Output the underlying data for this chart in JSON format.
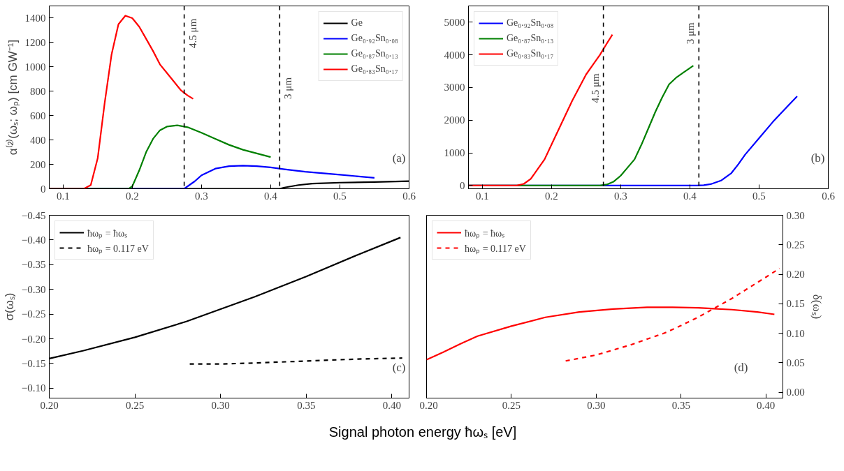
{
  "chart_data": [
    {
      "type": "line",
      "ylabel": "α⁽²⁾(ωₛ; ωₚ) [cm GW⁻¹]",
      "xlim": [
        0.08,
        0.6
      ],
      "xticks": [
        0.1,
        0.2,
        0.3,
        0.4,
        0.5,
        0.6
      ],
      "ylim": [
        0,
        1500
      ],
      "yticks": [
        0,
        200,
        400,
        600,
        800,
        1000,
        1200,
        1400
      ],
      "legend": "top right",
      "grid": false,
      "annotations": [
        "(a)"
      ],
      "ref_lines": [
        {
          "axis": "x",
          "value": 0.275,
          "label": "4.5 μm",
          "color": "#000000",
          "line_style": "dashed"
        },
        {
          "axis": "x",
          "value": 0.413,
          "label": "3 μm",
          "color": "#000000",
          "line_style": "dashed"
        }
      ],
      "series": [
        {
          "name": "Ge",
          "color": "#000000",
          "x": [
            0.08,
            0.413,
            0.42,
            0.44,
            0.46,
            0.5,
            0.55,
            0.6
          ],
          "values": [
            0,
            0,
            10,
            30,
            42,
            50,
            55,
            62
          ]
        },
        {
          "name": "Ge₀.₉₂Sn₀.₀₈",
          "color": "#0000ff",
          "x": [
            0.08,
            0.275,
            0.29,
            0.3,
            0.32,
            0.34,
            0.36,
            0.38,
            0.4,
            0.42,
            0.45,
            0.5,
            0.55
          ],
          "values": [
            0,
            0,
            60,
            110,
            165,
            185,
            190,
            185,
            175,
            160,
            140,
            115,
            90
          ]
        },
        {
          "name": "Ge₀.₈₇Sn₀.₁₃",
          "color": "#008000",
          "x": [
            0.08,
            0.195,
            0.2,
            0.21,
            0.22,
            0.23,
            0.24,
            0.25,
            0.265,
            0.28,
            0.3,
            0.32,
            0.34,
            0.36,
            0.38,
            0.4
          ],
          "values": [
            0,
            0,
            20,
            150,
            300,
            410,
            480,
            510,
            520,
            505,
            460,
            410,
            360,
            320,
            290,
            260
          ]
        },
        {
          "name": "Ge₀.₈₃Sn₀.₁₇",
          "color": "#ff0000",
          "x": [
            0.08,
            0.13,
            0.14,
            0.15,
            0.16,
            0.17,
            0.18,
            0.19,
            0.2,
            0.21,
            0.22,
            0.23,
            0.24,
            0.25,
            0.26,
            0.27,
            0.28,
            0.288
          ],
          "values": [
            0,
            0,
            30,
            250,
            700,
            1100,
            1350,
            1420,
            1400,
            1330,
            1230,
            1130,
            1020,
            950,
            880,
            810,
            765,
            738
          ]
        }
      ]
    },
    {
      "type": "line",
      "xlim": [
        0.08,
        0.6
      ],
      "xticks": [
        0.1,
        0.2,
        0.3,
        0.4,
        0.5,
        0.6
      ],
      "ylim": [
        -100,
        5500
      ],
      "yticks": [
        0,
        1000,
        2000,
        3000,
        4000,
        5000
      ],
      "legend": "top left",
      "grid": false,
      "annotations": [
        "(b)"
      ],
      "ref_lines": [
        {
          "axis": "x",
          "value": 0.275,
          "label": "4.5 μm",
          "color": "#000000",
          "line_style": "dashed"
        },
        {
          "axis": "x",
          "value": 0.413,
          "label": "3 μm",
          "color": "#000000",
          "line_style": "dashed"
        }
      ],
      "series": [
        {
          "name": "Ge₀.₉₂Sn₀.₀₈",
          "color": "#0000ff",
          "x": [
            0.08,
            0.41,
            0.42,
            0.43,
            0.445,
            0.46,
            0.47,
            0.48,
            0.5,
            0.52,
            0.54,
            0.555
          ],
          "values": [
            0,
            0,
            10,
            40,
            150,
            380,
            650,
            950,
            1450,
            1950,
            2400,
            2730
          ]
        },
        {
          "name": "Ge₀.₈₇Sn₀.₁₃",
          "color": "#008000",
          "x": [
            0.08,
            0.27,
            0.28,
            0.29,
            0.3,
            0.31,
            0.32,
            0.33,
            0.34,
            0.35,
            0.36,
            0.37,
            0.38,
            0.39,
            0.405
          ],
          "values": [
            0,
            0,
            30,
            120,
            300,
            550,
            800,
            1250,
            1750,
            2250,
            2700,
            3100,
            3300,
            3450,
            3670
          ]
        },
        {
          "name": "Ge₀.₈₃Sn₀.₁₇",
          "color": "#ff0000",
          "x": [
            0.08,
            0.15,
            0.16,
            0.17,
            0.18,
            0.19,
            0.2,
            0.21,
            0.22,
            0.23,
            0.24,
            0.25,
            0.26,
            0.27,
            0.28,
            0.288
          ],
          "values": [
            0,
            0,
            50,
            200,
            500,
            800,
            1250,
            1700,
            2150,
            2600,
            3000,
            3400,
            3700,
            4000,
            4350,
            4620
          ]
        }
      ]
    },
    {
      "type": "line",
      "ylabel": "σ(ωₛ)",
      "xlabel": "Signal photon energy ħωₛ [eV]",
      "xlim": [
        0.2,
        0.41
      ],
      "xticks": [
        {
          "value": 0.2,
          "label": "0.20"
        },
        {
          "value": 0.25,
          "label": "0.25"
        },
        {
          "value": 0.3,
          "label": "0.30"
        },
        {
          "value": 0.35,
          "label": "0.35"
        },
        {
          "value": 0.4,
          "label": "0.40"
        }
      ],
      "ylim": [
        -0.08,
        -0.45
      ],
      "yticks": [
        {
          "value": -0.1,
          "label": "−0.10"
        },
        {
          "value": -0.15,
          "label": "−0.15"
        },
        {
          "value": -0.2,
          "label": "−0.20"
        },
        {
          "value": -0.25,
          "label": "−0.25"
        },
        {
          "value": -0.3,
          "label": "−0.30"
        },
        {
          "value": -0.35,
          "label": "−0.35"
        },
        {
          "value": -0.4,
          "label": "−0.40"
        },
        {
          "value": -0.45,
          "label": "−0.45"
        }
      ],
      "legend": "top left",
      "grid": false,
      "annotations": [
        "(c)"
      ],
      "series": [
        {
          "name": "ħωₚ = ħωₛ",
          "color": "#000000",
          "line_style": "solid",
          "x": [
            0.2,
            0.22,
            0.25,
            0.28,
            0.3,
            0.32,
            0.35,
            0.38,
            0.405
          ],
          "values": [
            -0.16,
            -0.176,
            -0.203,
            -0.235,
            -0.26,
            -0.285,
            -0.326,
            -0.37,
            -0.405
          ]
        },
        {
          "name": "ħωₚ = 0.117 eV",
          "color": "#000000",
          "line_style": "dashed",
          "x": [
            0.282,
            0.3,
            0.32,
            0.35,
            0.38,
            0.406
          ],
          "values": [
            -0.149,
            -0.149,
            -0.151,
            -0.155,
            -0.159,
            -0.161
          ]
        }
      ]
    },
    {
      "type": "line",
      "y2label": "δ(ωₛ)",
      "xlim": [
        0.2,
        0.41
      ],
      "xticks": [
        {
          "value": 0.2,
          "label": "0.20"
        },
        {
          "value": 0.25,
          "label": "0.25"
        },
        {
          "value": 0.3,
          "label": "0.30"
        },
        {
          "value": 0.35,
          "label": "0.35"
        },
        {
          "value": 0.4,
          "label": "0.40"
        }
      ],
      "y2lim": [
        -0.01,
        0.3
      ],
      "y2ticks": [
        {
          "value": 0,
          "label": "0.00"
        },
        {
          "value": 0.05,
          "label": "0.05"
        },
        {
          "value": 0.1,
          "label": "0.10"
        },
        {
          "value": 0.15,
          "label": "0.15"
        },
        {
          "value": 0.2,
          "label": "0.20"
        },
        {
          "value": 0.25,
          "label": "0.25"
        },
        {
          "value": 0.3,
          "label": "0.30"
        }
      ],
      "legend": "top left",
      "grid": false,
      "annotations": [
        "(d)"
      ],
      "series": [
        {
          "name": "ħωₚ = ħωₛ",
          "color": "#ff0000",
          "line_style": "solid",
          "axis": "y2",
          "x": [
            0.2,
            0.21,
            0.22,
            0.23,
            0.25,
            0.27,
            0.29,
            0.31,
            0.33,
            0.345,
            0.36,
            0.38,
            0.395,
            0.405
          ],
          "values": [
            0.055,
            0.068,
            0.082,
            0.095,
            0.112,
            0.127,
            0.136,
            0.141,
            0.144,
            0.144,
            0.143,
            0.14,
            0.136,
            0.132
          ]
        },
        {
          "name": "ħωₚ = 0.117 eV",
          "color": "#ff0000",
          "line_style": "dashed",
          "axis": "y2",
          "x": [
            0.282,
            0.3,
            0.32,
            0.34,
            0.35,
            0.36,
            0.37,
            0.38,
            0.39,
            0.4,
            0.408
          ],
          "values": [
            0.053,
            0.063,
            0.08,
            0.1,
            0.113,
            0.127,
            0.143,
            0.159,
            0.177,
            0.195,
            0.21
          ]
        }
      ]
    }
  ]
}
